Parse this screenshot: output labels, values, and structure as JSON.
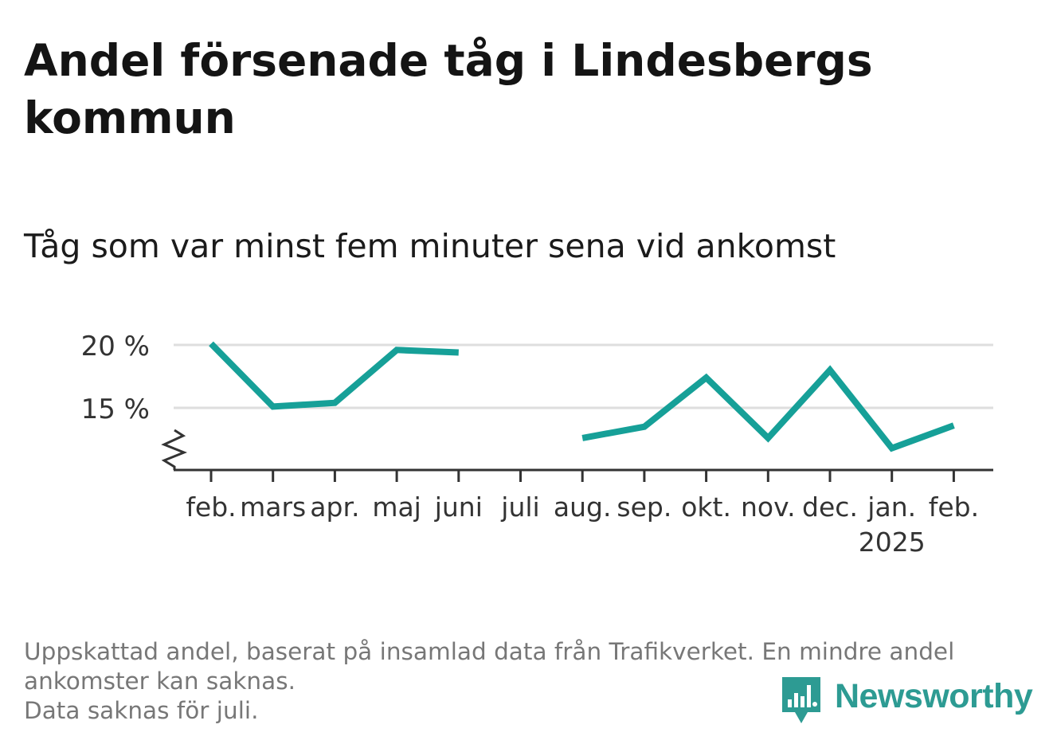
{
  "header": {
    "title": "Andel försenade tåg i Lindesbergs kommun",
    "subtitle": "Tåg som var minst fem minuter sena vid ankomst"
  },
  "footer": {
    "note_line1": "Uppskattad andel, baserat på insamlad data från Trafikverket. En mindre andel ankomster kan saknas.",
    "note_line2": "Data saknas för juli.",
    "brand": "Newsworthy"
  },
  "colors": {
    "line": "#16a098",
    "grid": "#dedede",
    "axis": "#333333",
    "brand": "#2d9b93"
  },
  "icons": {
    "axis_break": "zigzag-break-icon",
    "brand_mark": "newsworthy-logo-icon"
  },
  "chart_data": {
    "type": "line",
    "title": "Andel försenade tåg i Lindesbergs kommun",
    "subtitle": "Tåg som var minst fem minuter sena vid ankomst",
    "xlabel": "",
    "ylabel": "",
    "categories": [
      "feb.",
      "mars",
      "apr.",
      "maj",
      "juni",
      "juli",
      "aug.",
      "sep.",
      "okt.",
      "nov.",
      "dec.",
      "jan.",
      "feb."
    ],
    "year_labels": [
      "",
      "",
      "",
      "",
      "",
      "",
      "",
      "",
      "",
      "",
      "",
      "2025",
      ""
    ],
    "series": [
      {
        "values": [
          20.1,
          15.1,
          15.4,
          19.6,
          19.4,
          null,
          12.6,
          13.5,
          17.4,
          12.6,
          18.0,
          11.8,
          13.6
        ]
      }
    ],
    "y_ticks": [
      {
        "value": 15,
        "label": "15 %"
      },
      {
        "value": 20,
        "label": "20 %"
      }
    ],
    "ylim": [
      10,
      20
    ],
    "y_axis_break": true,
    "grid": true,
    "legend": "none"
  }
}
